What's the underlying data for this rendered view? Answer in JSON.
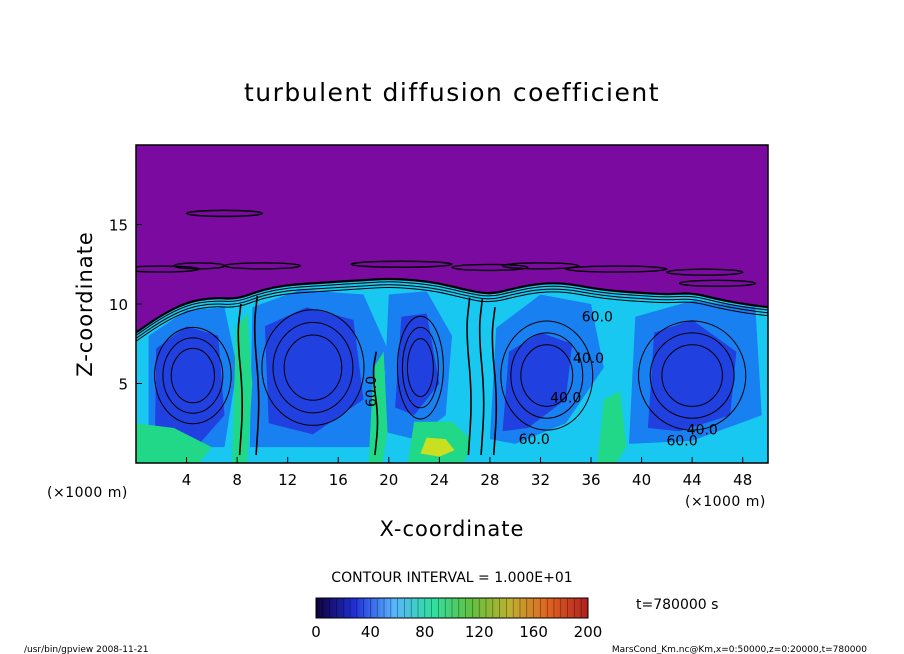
{
  "chart_data": {
    "type": "heatmap",
    "title": "turbulent diffusion coefficient",
    "xlabel": "X-coordinate",
    "ylabel": "Z-coordinate",
    "x_unit": "(×1000 m)",
    "y_unit": "(×1000 m)",
    "xlim": [
      0,
      50
    ],
    "ylim": [
      0,
      20
    ],
    "x_ticks": [
      4,
      8,
      12,
      16,
      20,
      24,
      28,
      32,
      36,
      40,
      44,
      48
    ],
    "y_ticks": [
      5,
      10,
      15
    ],
    "contour_interval_text": "CONTOUR INTERVAL = 1.000E+01",
    "time_text": "t=780000 s",
    "colorbar": {
      "min": 0,
      "max": 200,
      "ticks": [
        0,
        40,
        80,
        120,
        160,
        200
      ],
      "colors": [
        "#10003a",
        "#2030d8",
        "#58b4ff",
        "#30e0a0",
        "#60c040",
        "#c0b030",
        "#e06020",
        "#b02020"
      ]
    },
    "region_colors": {
      "above_layer": "#7a0aa0",
      "cell_core": "#2040e0",
      "cell_mid": "#1880f0",
      "cell_edge": "#18c8f0",
      "updraft": "#20d888",
      "strong": "#c8e020"
    },
    "contour_labels": [
      {
        "x": 36.5,
        "z": 8.9,
        "text": "60.0"
      },
      {
        "x": 35.8,
        "z": 6.3,
        "text": "40.0"
      },
      {
        "x": 34.0,
        "z": 3.8,
        "text": "40.0"
      },
      {
        "x": 31.5,
        "z": 1.2,
        "text": "60.0"
      },
      {
        "x": 44.8,
        "z": 1.8,
        "text": "40.0"
      },
      {
        "x": 43.2,
        "z": 1.1,
        "text": "60.0"
      },
      {
        "x": 19.0,
        "z": 4.5,
        "text": "60.0"
      }
    ]
  },
  "footer": {
    "program": "/usr/bin/gpview   2008-11-21",
    "variable": "MarsCond_Km.nc@Km,x=0:50000,z=0:20000,t=780000"
  }
}
